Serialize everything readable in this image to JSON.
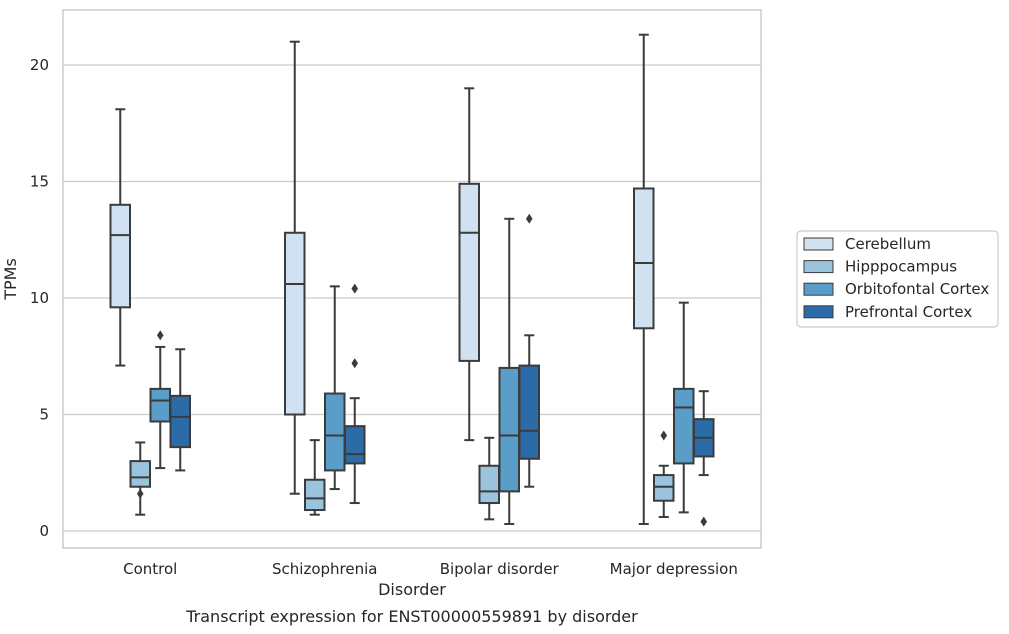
{
  "chart_data": {
    "type": "box",
    "caption": "Transcript expression for ENST00000559891 by disorder",
    "xlabel": "Disorder",
    "ylabel": "TPMs",
    "ylim": [
      -0.7,
      22.4
    ],
    "yticks": [
      0,
      5,
      10,
      15,
      20
    ],
    "grid": true,
    "legend_position": "right",
    "categories": [
      "Control",
      "Schizophrenia",
      "Bipolar disorder",
      "Major depression"
    ],
    "series": [
      {
        "name": "Cerebellum",
        "color": "#d0e1f1",
        "boxes": [
          {
            "whislo": 7.1,
            "q1": 9.6,
            "med": 12.7,
            "q3": 14.0,
            "whishi": 18.1,
            "fliers": []
          },
          {
            "whislo": 1.6,
            "q1": 5.0,
            "med": 10.6,
            "q3": 12.8,
            "whishi": 21.0,
            "fliers": []
          },
          {
            "whislo": 3.9,
            "q1": 7.3,
            "med": 12.8,
            "q3": 14.9,
            "whishi": 19.0,
            "fliers": []
          },
          {
            "whislo": 0.3,
            "q1": 8.7,
            "med": 11.5,
            "q3": 14.7,
            "whishi": 21.3,
            "fliers": []
          }
        ]
      },
      {
        "name": "Hipppocampus",
        "color": "#9ac3de",
        "boxes": [
          {
            "whislo": 0.7,
            "q1": 1.9,
            "med": 2.3,
            "q3": 3.0,
            "whishi": 3.8,
            "fliers": [
              1.6
            ]
          },
          {
            "whislo": 0.7,
            "q1": 0.9,
            "med": 1.4,
            "q3": 2.2,
            "whishi": 3.9,
            "fliers": []
          },
          {
            "whislo": 0.5,
            "q1": 1.2,
            "med": 1.7,
            "q3": 2.8,
            "whishi": 4.0,
            "fliers": []
          },
          {
            "whislo": 0.6,
            "q1": 1.3,
            "med": 1.9,
            "q3": 2.4,
            "whishi": 2.8,
            "fliers": [
              4.1
            ]
          }
        ]
      },
      {
        "name": "Orbitofontal Cortex",
        "color": "#5b9dc9",
        "boxes": [
          {
            "whislo": 2.7,
            "q1": 4.7,
            "med": 5.6,
            "q3": 6.1,
            "whishi": 7.9,
            "fliers": [
              8.4
            ]
          },
          {
            "whislo": 1.8,
            "q1": 2.6,
            "med": 4.1,
            "q3": 5.9,
            "whishi": 10.5,
            "fliers": []
          },
          {
            "whislo": 0.3,
            "q1": 1.7,
            "med": 4.1,
            "q3": 7.0,
            "whishi": 13.4,
            "fliers": []
          },
          {
            "whislo": 0.8,
            "q1": 2.9,
            "med": 5.3,
            "q3": 6.1,
            "whishi": 9.8,
            "fliers": []
          }
        ]
      },
      {
        "name": "Prefrontal Cortex",
        "color": "#2b6ca8",
        "boxes": [
          {
            "whislo": 2.6,
            "q1": 3.6,
            "med": 4.9,
            "q3": 5.8,
            "whishi": 7.8,
            "fliers": []
          },
          {
            "whislo": 1.2,
            "q1": 2.9,
            "med": 3.3,
            "q3": 4.5,
            "whishi": 5.7,
            "fliers": [
              7.2,
              10.4
            ]
          },
          {
            "whislo": 1.9,
            "q1": 3.1,
            "med": 4.3,
            "q3": 7.1,
            "whishi": 8.4,
            "fliers": [
              13.4
            ]
          },
          {
            "whislo": 2.4,
            "q1": 3.2,
            "med": 4.0,
            "q3": 4.8,
            "whishi": 6.0,
            "fliers": [
              0.4
            ]
          }
        ]
      }
    ]
  }
}
